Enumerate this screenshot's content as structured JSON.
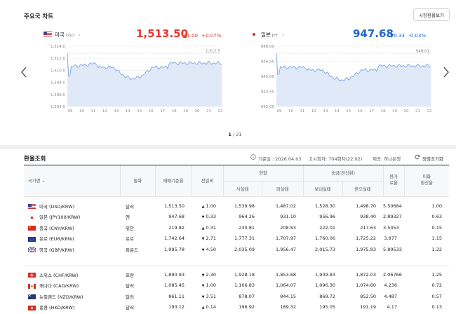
{
  "header": {
    "title": "주요국 차트",
    "market_button": "시장환율보기"
  },
  "cards": [
    {
      "flag": "us-flag",
      "name": "미국",
      "code": "USD",
      "price": "1,513.50",
      "change": "1.00",
      "change_pct": "+0.07%",
      "direction": "up",
      "y_ticks": [
        "1,514.0",
        "1,512.0",
        "1,510.0",
        "1,508.0",
        "1,506.0",
        "1,504.0"
      ],
      "x_ticks": [
        "09",
        "10",
        "11",
        "12",
        "13",
        "14",
        "15",
        "16",
        "17",
        "18",
        "19",
        "20",
        "21",
        "22"
      ],
      "ref_label": "1,512.5"
    },
    {
      "flag": "jp-flag",
      "name": "일본",
      "code": "JPY",
      "price": "947.68",
      "change": "0.33",
      "change_pct": "-0.03%",
      "direction": "down",
      "y_ticks": [
        "948.00",
        "946.50",
        "945.00",
        "943.50",
        "942.00"
      ],
      "x_ticks": [
        "09",
        "10",
        "11",
        "12",
        "13",
        "14",
        "15",
        "16",
        "17",
        "18",
        "19",
        "20",
        "21",
        "22"
      ],
      "ref_label": "948.01"
    }
  ],
  "pager": {
    "current": "1",
    "total": "/ 21"
  },
  "rates": {
    "title": "환율조회",
    "base_date": "기준일 : 2026.04.03",
    "notice": "고시회차: 704회차(22:02)",
    "provider": "제공: 하나은행",
    "sort_button": "정렬초기화",
    "headers": {
      "country": "국가명",
      "currency": "통화",
      "base_rate": "매매기준율",
      "prev_day": "전일비",
      "cash": "현찰",
      "cash_buy": "사실때",
      "cash_sell": "파실때",
      "remit": "송금(전신환)",
      "remit_send": "보내실때",
      "remit_recv": "받으실때",
      "usd_rate": "환가\n료율",
      "usd_convert": "미화\n환산율"
    },
    "rows": [
      {
        "flag": "us-flag",
        "name": "미국 (USD/KRW)",
        "unit": "달러",
        "base": "1,513.50",
        "dir": "up",
        "diff": "1.00",
        "cash_buy": "1,539.98",
        "cash_sell": "1,487.02",
        "send": "1,528.30",
        "recv": "1,498.70",
        "rate": "5.50684",
        "usd": "1.00"
      },
      {
        "flag": "jp-flag",
        "name": "일본 (JPY100/KRW)",
        "unit": "엔",
        "base": "947.68",
        "dir": "down",
        "diff": "0.33",
        "cash_buy": "964.26",
        "cash_sell": "931.10",
        "send": "956.96",
        "recv": "938.40",
        "rate": "2.89327",
        "usd": "0.63"
      },
      {
        "flag": "cn-flag",
        "name": "중국 (CNY/KRW)",
        "unit": "위안",
        "base": "219.82",
        "dir": "up",
        "diff": "0.31",
        "cash_buy": "230.81",
        "cash_sell": "208.83",
        "send": "222.01",
        "recv": "217.63",
        "rate": "3.5453",
        "usd": "0.15"
      },
      {
        "flag": "eu-flag",
        "name": "유로 (EUR/KRW)",
        "unit": "유로",
        "base": "1,742.64",
        "dir": "down",
        "diff": "2.71",
        "cash_buy": "1,777.31",
        "cash_sell": "1,707.97",
        "send": "1,760.06",
        "recv": "1,725.22",
        "rate": "3.877",
        "usd": "1.15"
      },
      {
        "flag": "gb-flag",
        "name": "영국 (GBP/KRW)",
        "unit": "파운드",
        "base": "1,995.78",
        "dir": "down",
        "diff": "4.50",
        "cash_buy": "2,035.09",
        "cash_sell": "1,956.47",
        "send": "2,015.73",
        "recv": "1,975.83",
        "rate": "5.89533",
        "usd": "1.32"
      }
    ],
    "rows2": [
      {
        "flag": "ch-flag",
        "name": "스위스 (CHF/KRW)",
        "unit": "프랑",
        "base": "1,890.93",
        "dir": "down",
        "diff": "2.30",
        "cash_buy": "1,928.18",
        "cash_sell": "1,853.68",
        "send": "1,909.83",
        "recv": "1,872.03",
        "rate": "2.06766",
        "usd": "1.25"
      },
      {
        "flag": "ca-flag",
        "name": "캐나다 (CAD/KRW)",
        "unit": "달러",
        "base": "1,085.45",
        "dir": "down",
        "diff": "1.00",
        "cash_buy": "1,106.83",
        "cash_sell": "1,064.07",
        "send": "1,096.30",
        "recv": "1,074.60",
        "rate": "4.236",
        "usd": "0.72"
      },
      {
        "flag": "nz-flag",
        "name": "뉴질랜드 (NZD/KRW)",
        "unit": "달러",
        "base": "861.11",
        "dir": "down",
        "diff": "3.51",
        "cash_buy": "878.07",
        "cash_sell": "844.15",
        "send": "869.72",
        "recv": "852.50",
        "rate": "4.487",
        "usd": "0.57"
      },
      {
        "flag": "hk-flag",
        "name": "홍콩 (HKD/KRW)",
        "unit": "달러",
        "base": "193.12",
        "dir": "up",
        "diff": "0.14",
        "cash_buy": "196.92",
        "cash_sell": "189.32",
        "send": "195.05",
        "recv": "191.19",
        "rate": "4.17",
        "usd": "0.13"
      }
    ]
  },
  "colors": {
    "up": "#e5362d",
    "down": "#2266c8",
    "line": "#7ea6e0",
    "fill": "#dfe9f8"
  }
}
